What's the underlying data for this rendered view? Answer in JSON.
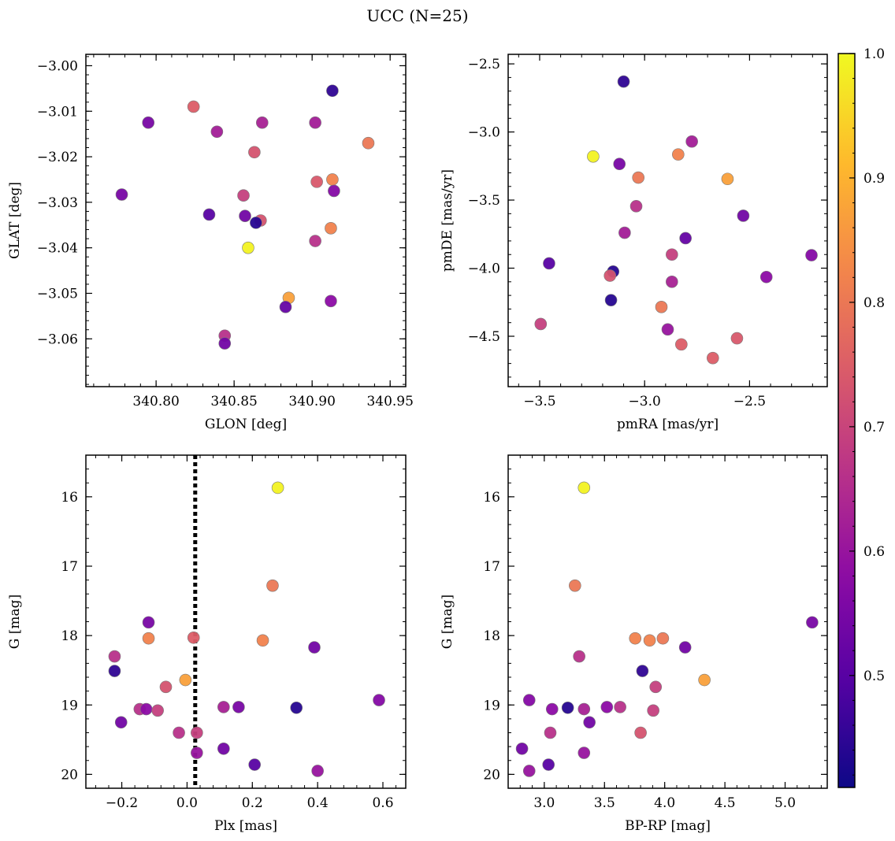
{
  "suptitle": "UCC (N=25)",
  "colorbar": {
    "cmap": "plasma",
    "min": 0.41,
    "max": 1.0,
    "ticks": [
      0.5,
      0.6,
      0.7,
      0.8,
      0.9,
      1.0
    ],
    "tick_labels": [
      "0.5",
      "0.6",
      "0.7",
      "0.8",
      "0.9",
      "1.0"
    ]
  },
  "chart_data": [
    {
      "type": "scatter",
      "id": "glon-glat",
      "xlabel": "GLON [deg]",
      "ylabel": "GLAT [deg]",
      "xlim": [
        340.755,
        340.96
      ],
      "ylim": [
        -3.0705,
        -2.9975
      ],
      "xticks": [
        340.8,
        340.85,
        340.9,
        340.95
      ],
      "xtick_labels": [
        "340.80",
        "340.85",
        "340.90",
        "340.95"
      ],
      "yticks": [
        -3.0,
        -3.01,
        -3.02,
        -3.03,
        -3.04,
        -3.05,
        -3.06
      ],
      "ytick_labels": [
        "−3.00",
        "−3.01",
        "−3.02",
        "−3.03",
        "−3.04",
        "−3.05",
        "−3.06"
      ],
      "points": [
        {
          "x": 340.913,
          "y": -3.0055,
          "c": 0.45
        },
        {
          "x": 340.795,
          "y": -3.0125,
          "c": 0.55
        },
        {
          "x": 340.824,
          "y": -3.009,
          "c": 0.75
        },
        {
          "x": 340.839,
          "y": -3.0145,
          "c": 0.62
        },
        {
          "x": 340.868,
          "y": -3.0125,
          "c": 0.63
        },
        {
          "x": 340.902,
          "y": -3.0125,
          "c": 0.62
        },
        {
          "x": 340.936,
          "y": -3.017,
          "c": 0.8
        },
        {
          "x": 340.863,
          "y": -3.019,
          "c": 0.73
        },
        {
          "x": 340.913,
          "y": -3.025,
          "c": 0.82
        },
        {
          "x": 340.903,
          "y": -3.0255,
          "c": 0.74
        },
        {
          "x": 340.778,
          "y": -3.0283,
          "c": 0.55
        },
        {
          "x": 340.914,
          "y": -3.0275,
          "c": 0.57
        },
        {
          "x": 340.856,
          "y": -3.0285,
          "c": 0.69
        },
        {
          "x": 340.834,
          "y": -3.0327,
          "c": 0.5
        },
        {
          "x": 340.857,
          "y": -3.033,
          "c": 0.54
        },
        {
          "x": 340.867,
          "y": -3.034,
          "c": 0.73
        },
        {
          "x": 340.864,
          "y": -3.0345,
          "c": 0.44
        },
        {
          "x": 340.912,
          "y": -3.0357,
          "c": 0.82
        },
        {
          "x": 340.859,
          "y": -3.04,
          "c": 0.99
        },
        {
          "x": 340.902,
          "y": -3.0385,
          "c": 0.66
        },
        {
          "x": 340.885,
          "y": -3.051,
          "c": 0.87
        },
        {
          "x": 340.883,
          "y": -3.053,
          "c": 0.52
        },
        {
          "x": 340.912,
          "y": -3.0517,
          "c": 0.58
        },
        {
          "x": 340.844,
          "y": -3.0593,
          "c": 0.66
        },
        {
          "x": 340.844,
          "y": -3.061,
          "c": 0.54
        }
      ]
    },
    {
      "type": "scatter",
      "id": "pm",
      "xlabel": "pmRA [mas/yr]",
      "ylabel": "pmDE [mas/yr]",
      "xlim": [
        -3.65,
        -2.13
      ],
      "ylim": [
        -4.87,
        -2.43
      ],
      "xticks": [
        -3.5,
        -3.0,
        -2.5
      ],
      "xtick_labels": [
        "−3.5",
        "−3.0",
        "−2.5"
      ],
      "yticks": [
        -2.5,
        -3.0,
        -3.5,
        -4.0,
        -4.5
      ],
      "ytick_labels": [
        "−2.5",
        "−3.0",
        "−3.5",
        "−4.0",
        "−4.5"
      ],
      "points": [
        {
          "x": -3.1,
          "y": -2.63,
          "c": 0.45
        },
        {
          "x": -2.775,
          "y": -3.07,
          "c": 0.62
        },
        {
          "x": -3.245,
          "y": -3.18,
          "c": 0.99
        },
        {
          "x": -2.84,
          "y": -3.165,
          "c": 0.82
        },
        {
          "x": -3.12,
          "y": -3.235,
          "c": 0.55
        },
        {
          "x": -3.03,
          "y": -3.335,
          "c": 0.8
        },
        {
          "x": -2.605,
          "y": -3.345,
          "c": 0.87
        },
        {
          "x": -3.04,
          "y": -3.545,
          "c": 0.66
        },
        {
          "x": -2.53,
          "y": -3.615,
          "c": 0.54
        },
        {
          "x": -3.095,
          "y": -3.74,
          "c": 0.62
        },
        {
          "x": -2.805,
          "y": -3.78,
          "c": 0.52
        },
        {
          "x": -2.87,
          "y": -3.9,
          "c": 0.69
        },
        {
          "x": -2.205,
          "y": -3.905,
          "c": 0.57
        },
        {
          "x": -3.455,
          "y": -3.965,
          "c": 0.5
        },
        {
          "x": -3.15,
          "y": -4.025,
          "c": 0.44
        },
        {
          "x": -3.165,
          "y": -4.055,
          "c": 0.73
        },
        {
          "x": -2.42,
          "y": -4.065,
          "c": 0.58
        },
        {
          "x": -2.87,
          "y": -4.1,
          "c": 0.63
        },
        {
          "x": -3.16,
          "y": -4.235,
          "c": 0.44
        },
        {
          "x": -2.92,
          "y": -4.285,
          "c": 0.8
        },
        {
          "x": -3.495,
          "y": -4.41,
          "c": 0.69
        },
        {
          "x": -2.89,
          "y": -4.45,
          "c": 0.6
        },
        {
          "x": -2.56,
          "y": -4.515,
          "c": 0.74
        },
        {
          "x": -2.825,
          "y": -4.56,
          "c": 0.75
        },
        {
          "x": -2.675,
          "y": -4.66,
          "c": 0.75
        }
      ]
    },
    {
      "type": "scatter",
      "id": "plx-g",
      "xlabel": "Plx [mas]",
      "ylabel": "G [mag]",
      "xlim": [
        -0.31,
        0.67
      ],
      "ylim": [
        20.2,
        15.4
      ],
      "y_inverted": true,
      "vline": {
        "x": 0.025,
        "style": "dotted"
      },
      "xticks": [
        -0.2,
        0.0,
        0.2,
        0.4,
        0.6
      ],
      "xtick_labels": [
        "−0.2",
        "0.0",
        "0.2",
        "0.4",
        "0.6"
      ],
      "yticks": [
        16,
        17,
        18,
        19,
        20
      ],
      "ytick_labels": [
        "16",
        "17",
        "18",
        "19",
        "20"
      ],
      "points": [
        {
          "x": 0.278,
          "y": 15.87,
          "c": 0.99
        },
        {
          "x": 0.262,
          "y": 17.28,
          "c": 0.8
        },
        {
          "x": -0.118,
          "y": 17.81,
          "c": 0.55
        },
        {
          "x": -0.118,
          "y": 18.04,
          "c": 0.82
        },
        {
          "x": 0.02,
          "y": 18.03,
          "c": 0.75
        },
        {
          "x": 0.232,
          "y": 18.07,
          "c": 0.82
        },
        {
          "x": 0.39,
          "y": 18.17,
          "c": 0.54
        },
        {
          "x": -0.222,
          "y": 18.3,
          "c": 0.66
        },
        {
          "x": -0.222,
          "y": 18.51,
          "c": 0.45
        },
        {
          "x": -0.005,
          "y": 18.64,
          "c": 0.87
        },
        {
          "x": -0.065,
          "y": 18.74,
          "c": 0.73
        },
        {
          "x": 0.588,
          "y": 18.93,
          "c": 0.57
        },
        {
          "x": 0.112,
          "y": 19.03,
          "c": 0.63
        },
        {
          "x": 0.158,
          "y": 19.03,
          "c": 0.55
        },
        {
          "x": 0.335,
          "y": 19.04,
          "c": 0.44
        },
        {
          "x": -0.145,
          "y": 19.06,
          "c": 0.66
        },
        {
          "x": -0.125,
          "y": 19.06,
          "c": 0.58
        },
        {
          "x": -0.09,
          "y": 19.08,
          "c": 0.69
        },
        {
          "x": -0.202,
          "y": 19.25,
          "c": 0.54
        },
        {
          "x": -0.025,
          "y": 19.4,
          "c": 0.66
        },
        {
          "x": 0.03,
          "y": 19.4,
          "c": 0.69
        },
        {
          "x": 0.112,
          "y": 19.63,
          "c": 0.54
        },
        {
          "x": 0.03,
          "y": 19.69,
          "c": 0.6
        },
        {
          "x": 0.207,
          "y": 19.86,
          "c": 0.5
        },
        {
          "x": 0.4,
          "y": 19.95,
          "c": 0.6
        }
      ]
    },
    {
      "type": "scatter",
      "id": "cmd",
      "xlabel": "BP-RP [mag]",
      "ylabel": "G [mag]",
      "xlim": [
        2.7,
        5.35
      ],
      "ylim": [
        20.2,
        15.4
      ],
      "y_inverted": true,
      "xticks": [
        3.0,
        3.5,
        4.0,
        4.5,
        5.0
      ],
      "xtick_labels": [
        "3.0",
        "3.5",
        "4.0",
        "4.5",
        "5.0"
      ],
      "yticks": [
        16,
        17,
        18,
        19,
        20
      ],
      "ytick_labels": [
        "16",
        "17",
        "18",
        "19",
        "20"
      ],
      "points": [
        {
          "x": 3.33,
          "y": 15.87,
          "c": 0.99
        },
        {
          "x": 3.255,
          "y": 17.28,
          "c": 0.8
        },
        {
          "x": 5.225,
          "y": 17.81,
          "c": 0.55
        },
        {
          "x": 3.755,
          "y": 18.04,
          "c": 0.82
        },
        {
          "x": 3.985,
          "y": 18.04,
          "c": 0.8
        },
        {
          "x": 3.875,
          "y": 18.07,
          "c": 0.82
        },
        {
          "x": 4.17,
          "y": 18.17,
          "c": 0.54
        },
        {
          "x": 3.29,
          "y": 18.3,
          "c": 0.66
        },
        {
          "x": 3.815,
          "y": 18.51,
          "c": 0.45
        },
        {
          "x": 4.33,
          "y": 18.64,
          "c": 0.87
        },
        {
          "x": 3.925,
          "y": 18.74,
          "c": 0.69
        },
        {
          "x": 2.875,
          "y": 18.93,
          "c": 0.57
        },
        {
          "x": 3.52,
          "y": 19.03,
          "c": 0.58
        },
        {
          "x": 3.63,
          "y": 19.03,
          "c": 0.66
        },
        {
          "x": 3.195,
          "y": 19.04,
          "c": 0.44
        },
        {
          "x": 3.065,
          "y": 19.06,
          "c": 0.58
        },
        {
          "x": 3.33,
          "y": 19.06,
          "c": 0.63
        },
        {
          "x": 3.905,
          "y": 19.08,
          "c": 0.69
        },
        {
          "x": 3.375,
          "y": 19.25,
          "c": 0.54
        },
        {
          "x": 3.05,
          "y": 19.4,
          "c": 0.66
        },
        {
          "x": 3.8,
          "y": 19.4,
          "c": 0.73
        },
        {
          "x": 2.815,
          "y": 19.63,
          "c": 0.54
        },
        {
          "x": 3.33,
          "y": 19.69,
          "c": 0.6
        },
        {
          "x": 3.035,
          "y": 19.86,
          "c": 0.5
        },
        {
          "x": 2.875,
          "y": 19.95,
          "c": 0.6
        }
      ]
    }
  ]
}
